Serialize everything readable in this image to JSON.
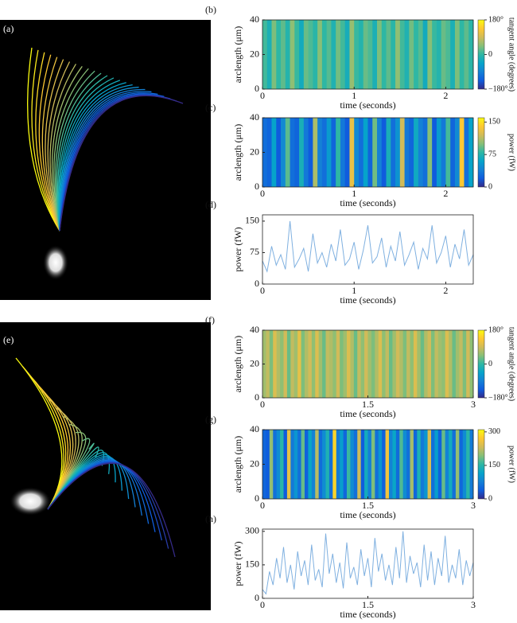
{
  "images": [
    {
      "label": "(a)"
    },
    {
      "label": "(e)"
    }
  ],
  "chart_data": [
    {
      "type": "heatmap",
      "label": "(b)",
      "xlabel": "time (seconds)",
      "ylabel": "arclength (μm)",
      "xlim": [
        0,
        2.3
      ],
      "ylim": [
        0,
        40
      ],
      "xticks": [
        0,
        1,
        2
      ],
      "yticks": [
        0,
        20,
        40
      ],
      "colorbar": {
        "label": "tangent angle (degrees)",
        "clim": [
          -180,
          180
        ],
        "ticks": [
          {
            "value": 180,
            "label": "180°"
          },
          0,
          {
            "value": -180,
            "label": "−180°"
          }
        ]
      },
      "values": [
        10,
        -20,
        40,
        0,
        25,
        -10,
        50,
        5,
        -30,
        30,
        15,
        -5,
        45,
        0,
        20,
        -15,
        35,
        10,
        -25,
        55,
        5,
        -10,
        30,
        15,
        -20,
        40,
        0,
        25,
        -5,
        50,
        10,
        -15,
        35,
        0,
        20,
        -30,
        45,
        5,
        -10,
        30,
        15,
        -20,
        40,
        0,
        25,
        -5
      ]
    },
    {
      "type": "heatmap",
      "label": "(c)",
      "xlabel": "time (seconds)",
      "ylabel": "arclength (μm)",
      "xlim": [
        0,
        2.3
      ],
      "ylim": [
        0,
        40
      ],
      "xticks": [
        0,
        1,
        2
      ],
      "yticks": [
        0,
        20,
        40
      ],
      "colorbar": {
        "label": "power (fW)",
        "clim": [
          0,
          160
        ],
        "ticks": [
          150,
          75,
          0
        ]
      },
      "values": [
        30,
        25,
        60,
        20,
        45,
        90,
        30,
        25,
        70,
        35,
        20,
        110,
        40,
        30,
        55,
        25,
        80,
        35,
        20,
        130,
        45,
        30,
        60,
        25,
        95,
        40,
        20,
        70,
        30,
        50,
        120,
        35,
        25,
        65,
        40,
        30,
        100,
        20,
        55,
        35,
        85,
        25,
        45,
        140,
        30,
        60
      ]
    },
    {
      "type": "line",
      "label": "(d)",
      "xlabel": "time (seconds)",
      "ylabel": "power (fW)",
      "xlim": [
        0,
        2.3
      ],
      "ylim": [
        0,
        165
      ],
      "xticks": [
        0,
        1,
        2
      ],
      "yticks": [
        0,
        75,
        150
      ],
      "color": "#7fb0e0",
      "x": [
        0,
        0.05,
        0.1,
        0.15,
        0.2,
        0.25,
        0.3,
        0.35,
        0.4,
        0.45,
        0.5,
        0.55,
        0.6,
        0.65,
        0.7,
        0.75,
        0.8,
        0.85,
        0.9,
        0.95,
        1,
        1.05,
        1.1,
        1.15,
        1.2,
        1.25,
        1.3,
        1.35,
        1.4,
        1.45,
        1.5,
        1.55,
        1.6,
        1.65,
        1.7,
        1.75,
        1.8,
        1.85,
        1.9,
        1.95,
        2,
        2.05,
        2.1,
        2.15,
        2.2,
        2.25,
        2.3
      ],
      "values": [
        55,
        30,
        90,
        45,
        70,
        35,
        150,
        40,
        60,
        85,
        30,
        120,
        50,
        75,
        40,
        95,
        55,
        130,
        45,
        60,
        100,
        35,
        80,
        140,
        50,
        65,
        110,
        40,
        90,
        55,
        125,
        45,
        70,
        100,
        35,
        85,
        60,
        140,
        50,
        75,
        115,
        40,
        95,
        60,
        130,
        45,
        70
      ]
    },
    {
      "type": "heatmap",
      "label": "(f)",
      "xlabel": "time (seconds)",
      "ylabel": "arclength (μm)",
      "xlim": [
        0,
        3
      ],
      "ylim": [
        0,
        40
      ],
      "xticks": [
        0,
        1.5,
        3
      ],
      "yticks": [
        0,
        20,
        40
      ],
      "colorbar": {
        "label": "tangent angle (degrees)",
        "clim": [
          -180,
          180
        ],
        "ticks": [
          {
            "value": 180,
            "label": "180°"
          },
          0,
          {
            "value": -180,
            "label": "−180°"
          }
        ]
      },
      "values": [
        60,
        80,
        40,
        100,
        70,
        50,
        90,
        30,
        80,
        60,
        110,
        40,
        70,
        90,
        50,
        100,
        60,
        30,
        80,
        70,
        50,
        90,
        40,
        60,
        100,
        70,
        30,
        80,
        50,
        90,
        60,
        40,
        70,
        100,
        50,
        80,
        30,
        60,
        90,
        70,
        40,
        80,
        50,
        100,
        60,
        30,
        70,
        90,
        40,
        80,
        60,
        50,
        100,
        70,
        30,
        60,
        80,
        40,
        90,
        50
      ]
    },
    {
      "type": "heatmap",
      "label": "(g)",
      "xlabel": "time (seconds)",
      "ylabel": "arclength (μm)",
      "xlim": [
        0,
        3
      ],
      "ylim": [
        0,
        40
      ],
      "xticks": [
        0,
        1.5,
        3
      ],
      "yticks": [
        0,
        20,
        40
      ],
      "colorbar": {
        "label": "power (fW)",
        "clim": [
          0,
          310
        ],
        "ticks": [
          300,
          150,
          0
        ]
      },
      "values": [
        50,
        40,
        200,
        60,
        90,
        150,
        40,
        250,
        70,
        100,
        60,
        180,
        45,
        120,
        80,
        220,
        55,
        90,
        140,
        60,
        280,
        70,
        110,
        50,
        160,
        90,
        60,
        230,
        40,
        130,
        75,
        190,
        60,
        100,
        45,
        260,
        80,
        120,
        55,
        170,
        90,
        60,
        210,
        50,
        140,
        70,
        100,
        240,
        60,
        110,
        45,
        180,
        80,
        130,
        60,
        200,
        50,
        90,
        150,
        70
      ]
    },
    {
      "type": "line",
      "label": "(h)",
      "xlabel": "time (seconds)",
      "ylabel": "power (fW)",
      "xlim": [
        0,
        3
      ],
      "ylim": [
        0,
        310
      ],
      "xticks": [
        0,
        1.5,
        3
      ],
      "yticks": [
        0,
        150,
        300
      ],
      "color": "#7fb0e0",
      "x": [
        0,
        0.05,
        0.1,
        0.15,
        0.2,
        0.25,
        0.3,
        0.35,
        0.4,
        0.45,
        0.5,
        0.55,
        0.6,
        0.65,
        0.7,
        0.75,
        0.8,
        0.85,
        0.9,
        0.95,
        1,
        1.05,
        1.1,
        1.15,
        1.2,
        1.25,
        1.3,
        1.35,
        1.4,
        1.45,
        1.5,
        1.55,
        1.6,
        1.65,
        1.7,
        1.75,
        1.8,
        1.85,
        1.9,
        1.95,
        2,
        2.05,
        2.1,
        2.15,
        2.2,
        2.25,
        2.3,
        2.35,
        2.4,
        2.45,
        2.5,
        2.55,
        2.6,
        2.65,
        2.7,
        2.75,
        2.8,
        2.85,
        2.9,
        2.95,
        3
      ],
      "values": [
        40,
        20,
        120,
        60,
        180,
        90,
        230,
        70,
        150,
        40,
        210,
        100,
        170,
        60,
        240,
        80,
        130,
        50,
        290,
        110,
        200,
        70,
        160,
        45,
        250,
        90,
        140,
        60,
        220,
        100,
        180,
        50,
        270,
        120,
        200,
        80,
        150,
        60,
        230,
        90,
        300,
        70,
        190,
        110,
        160,
        50,
        240,
        80,
        210,
        60,
        180,
        100,
        280,
        70,
        150,
        90,
        220,
        60,
        170,
        100,
        160
      ]
    }
  ]
}
